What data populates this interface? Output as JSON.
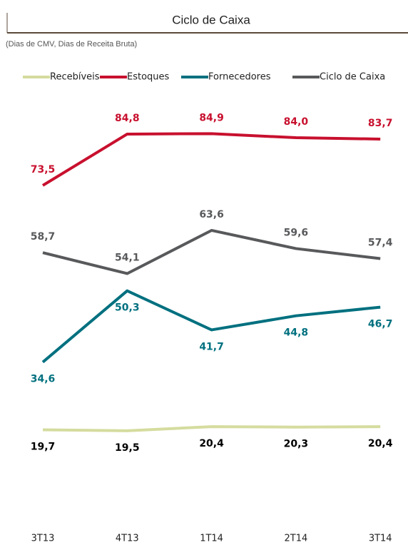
{
  "chart_data": {
    "type": "line",
    "title": "Ciclo de Caixa",
    "subtitle": "(Dias de CMV, Dias de Receita Bruta)",
    "categories": [
      "3T13",
      "4T13",
      "1T14",
      "2T14",
      "3T14"
    ],
    "ylim": [
      0,
      95
    ],
    "series": [
      {
        "name": "Recebíveis",
        "color": "#d5dc9e",
        "label_color": "#000000",
        "values": [
          19.7,
          19.5,
          20.4,
          20.3,
          20.4
        ],
        "value_labels": [
          "19,7",
          "19,5",
          "20,4",
          "20,3",
          "20,4"
        ]
      },
      {
        "name": "Estoques",
        "color": "#c8102e",
        "label_color": "#c8102e",
        "values": [
          73.5,
          84.8,
          84.9,
          84.0,
          83.7
        ],
        "value_labels": [
          "73,5",
          "84,8",
          "84,9",
          "84,0",
          "83,7"
        ]
      },
      {
        "name": "Fornecedores",
        "color": "#00707f",
        "label_color": "#00707f",
        "values": [
          34.6,
          50.3,
          41.7,
          44.8,
          46.7
        ],
        "value_labels": [
          "34,6",
          "50,3",
          "41,7",
          "44,8",
          "46,7"
        ]
      },
      {
        "name": "Ciclo de Caixa",
        "color": "#58595b",
        "label_color": "#58595b",
        "values": [
          58.7,
          54.1,
          63.6,
          59.6,
          57.4
        ],
        "value_labels": [
          "58,7",
          "54,1",
          "63,6",
          "59,6",
          "57,4"
        ]
      }
    ]
  }
}
